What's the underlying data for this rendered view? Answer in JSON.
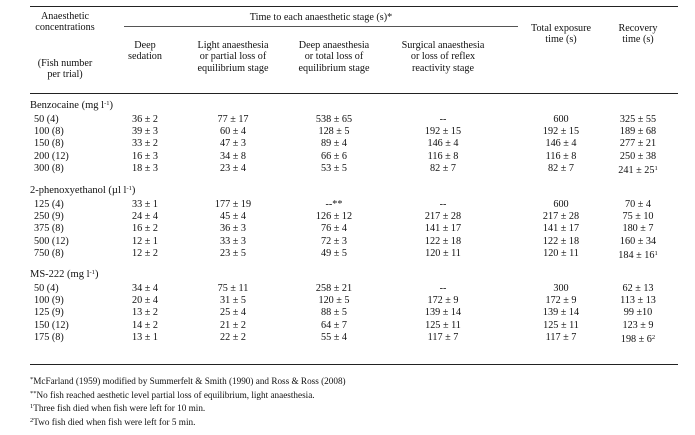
{
  "headers": {
    "concentration": [
      "Anaesthetic",
      "concentrations"
    ],
    "fish_number": [
      "(Fish number",
      "per trial)"
    ],
    "time_group": "Time to each anaesthetic stage (s)*",
    "deep_sedation": [
      "Deep",
      "sedation"
    ],
    "light_anaesthesia": [
      "Light anaesthesia",
      "or partial loss of",
      "equilibrium stage"
    ],
    "deep_anaesthesia": [
      "Deep anaesthesia",
      "or total loss of",
      "equilibrium stage"
    ],
    "surgical_anaesthesia": [
      "Surgical anaesthesia",
      "or loss of reflex",
      "reactivity stage"
    ],
    "total_exposure": [
      "Total exposure",
      "time (s)"
    ],
    "recovery": [
      "Recovery",
      "time (s)"
    ]
  },
  "sections": [
    {
      "name": "Benzocaine (mg l",
      "unit_sup": "-1",
      "rows": [
        {
          "conc": "50 (4)",
          "deep_sed": "36 ± 2",
          "light": "77 ± 17",
          "deep_an": "538 ± 65",
          "surg": "--",
          "total": "600",
          "rec": "325 ± 55",
          "rec_sup": ""
        },
        {
          "conc": "100 (8)",
          "deep_sed": "39 ± 3",
          "light": "60 ± 4",
          "deep_an": "128 ± 5",
          "surg": "192 ± 15",
          "total": "192 ± 15",
          "rec": "189 ± 68",
          "rec_sup": ""
        },
        {
          "conc": "150 (8)",
          "deep_sed": "33 ± 2",
          "light": "47 ± 3",
          "deep_an": "89 ± 4",
          "surg": "146 ± 4",
          "total": "146 ± 4",
          "rec": "277 ± 21",
          "rec_sup": ""
        },
        {
          "conc": "200 (12)",
          "deep_sed": "16 ± 3",
          "light": "34 ± 8",
          "deep_an": "66 ± 6",
          "surg": "116 ± 8",
          "total": "116 ± 8",
          "rec": "250 ± 38",
          "rec_sup": ""
        },
        {
          "conc": "300 (8)",
          "deep_sed": "18 ± 3",
          "light": "23 ± 4",
          "deep_an": "53 ± 5",
          "surg": "82 ± 7",
          "total": "82 ± 7",
          "rec": "241 ± 25",
          "rec_sup": "1"
        }
      ]
    },
    {
      "name": "2-phenoxyethanol (µl l",
      "unit_sup": "-1",
      "rows": [
        {
          "conc": "125 (4)",
          "deep_sed": "33 ± 1",
          "light": "177 ± 19",
          "deep_an": "--**",
          "surg": "--",
          "total": "600",
          "rec": "70 ± 4",
          "rec_sup": ""
        },
        {
          "conc": "250 (9)",
          "deep_sed": "24 ± 4",
          "light": "45 ± 4",
          "deep_an": "126 ± 12",
          "surg": "217 ± 28",
          "total": "217 ± 28",
          "rec": "75 ± 10",
          "rec_sup": ""
        },
        {
          "conc": "375 (8)",
          "deep_sed": "16 ± 2",
          "light": "36 ± 3",
          "deep_an": "76 ± 4",
          "surg": "141 ± 17",
          "total": "141 ± 17",
          "rec": "180 ± 7",
          "rec_sup": ""
        },
        {
          "conc": "500 (12)",
          "deep_sed": "12 ± 1",
          "light": "33 ± 3",
          "deep_an": "72 ± 3",
          "surg": "122 ± 18",
          "total": "122 ± 18",
          "rec": "160 ± 34",
          "rec_sup": ""
        },
        {
          "conc": "750 (8)",
          "deep_sed": "12 ± 2",
          "light": "23 ± 5",
          "deep_an": "49 ± 5",
          "surg": "120 ± 11",
          "total": "120 ± 11",
          "rec": "184 ± 16",
          "rec_sup": "1"
        }
      ]
    },
    {
      "name": "MS-222 (mg l",
      "unit_sup": "-1",
      "rows": [
        {
          "conc": "50 (4)",
          "deep_sed": "34 ± 4",
          "light": "75 ± 11",
          "deep_an": "258 ± 21",
          "surg": "--",
          "total": "300",
          "rec": "62 ± 13",
          "rec_sup": ""
        },
        {
          "conc": "100 (9)",
          "deep_sed": "20 ± 4",
          "light": "31 ± 5",
          "deep_an": "120 ± 5",
          "surg": "172 ± 9",
          "total": "172 ± 9",
          "rec": "113 ± 13",
          "rec_sup": ""
        },
        {
          "conc": "125 (9)",
          "deep_sed": "13 ± 2",
          "light": "25 ± 4",
          "deep_an": "88 ± 5",
          "surg": "139 ± 14",
          "total": "139 ± 14",
          "rec": "99 ±10",
          "rec_sup": ""
        },
        {
          "conc": "150 (12)",
          "deep_sed": "14 ± 2",
          "light": "21 ± 2",
          "deep_an": "64 ± 7",
          "surg": "125 ± 11",
          "total": "125 ± 11",
          "rec": "123 ± 9",
          "rec_sup": ""
        },
        {
          "conc": "175 (8)",
          "deep_sed": "13 ± 1",
          "light": "22 ± 2",
          "deep_an": "55 ± 4",
          "surg": "117 ± 7",
          "total": "117 ± 7",
          "rec": "198 ± 6",
          "rec_sup": "2"
        }
      ]
    }
  ],
  "footnotes": [
    {
      "mark": "*",
      "text": "McFarland (1959) modified by Summerfelt & Smith (1990) and Ross & Ross (2008)"
    },
    {
      "mark": "**",
      "text": "No fish reached aesthetic level partial loss of equilibrium, light anaesthesia."
    },
    {
      "mark": "1",
      "text": "Three fish died when fish were left for 10 min."
    },
    {
      "mark": "2",
      "text": "Two fish died when fish were left for 5 min."
    }
  ]
}
